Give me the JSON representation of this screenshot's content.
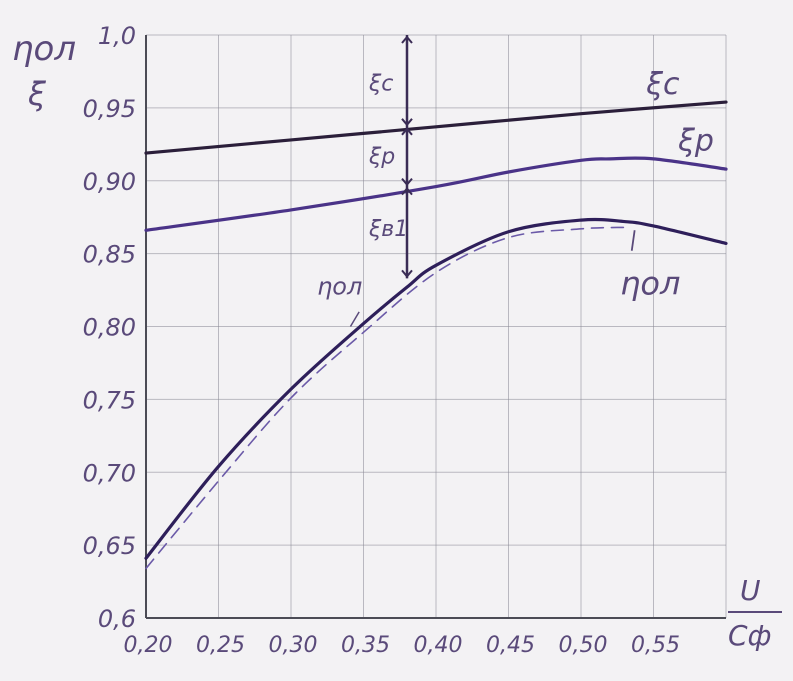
{
  "chart_data": {
    "type": "line",
    "title": "",
    "ylabel_top": "ηол",
    "ylabel_bottom": "ξ",
    "xlabel_num": "U",
    "xlabel_den": "Cф",
    "xlim": [
      0.2,
      0.6
    ],
    "ylim": [
      0.6,
      1.0
    ],
    "grid": true,
    "xticks": [
      0.2,
      0.25,
      0.3,
      0.35,
      0.4,
      0.45,
      0.5,
      0.55
    ],
    "xtick_labels": [
      "0,20",
      "0,25",
      "0,30",
      "0,35",
      "0,40",
      "0,45",
      "0,50",
      "0,55"
    ],
    "yticks": [
      0.6,
      0.65,
      0.7,
      0.75,
      0.8,
      0.85,
      0.9,
      0.95,
      1.0
    ],
    "ytick_labels": [
      "0,6",
      "0,65",
      "0,70",
      "0,75",
      "0,80",
      "0,85",
      "0,90",
      "0,95",
      "1,0"
    ],
    "series": [
      {
        "name": "ξс",
        "style": "solid",
        "color": "#2b1f3a",
        "x": [
          0.2,
          0.3,
          0.4,
          0.5,
          0.6
        ],
        "y": [
          0.919,
          0.928,
          0.937,
          0.946,
          0.954
        ]
      },
      {
        "name": "ξр",
        "style": "solid",
        "color": "#4a3388",
        "x": [
          0.2,
          0.3,
          0.4,
          0.45,
          0.5,
          0.52,
          0.55,
          0.6
        ],
        "y": [
          0.866,
          0.88,
          0.896,
          0.906,
          0.914,
          0.915,
          0.915,
          0.908
        ]
      },
      {
        "name": "ηол",
        "style": "solid",
        "color": "#2e1f5a",
        "x": [
          0.2,
          0.25,
          0.3,
          0.35,
          0.38,
          0.4,
          0.45,
          0.5,
          0.53,
          0.55,
          0.6
        ],
        "y": [
          0.641,
          0.704,
          0.757,
          0.802,
          0.827,
          0.842,
          0.865,
          0.873,
          0.872,
          0.869,
          0.857
        ]
      },
      {
        "name": "ηол (dashed)",
        "style": "dashed",
        "color": "#6b5aa8",
        "x": [
          0.2,
          0.25,
          0.3,
          0.35,
          0.4,
          0.45,
          0.5,
          0.53
        ],
        "y": [
          0.634,
          0.694,
          0.751,
          0.796,
          0.837,
          0.861,
          0.867,
          0.868
        ]
      }
    ],
    "annotations": [
      {
        "text": "ξс",
        "near_series": "ξс"
      },
      {
        "text": "ξр",
        "near_series": "ξр"
      },
      {
        "text": "ηол",
        "near_series": "ηол (upper-left label)"
      },
      {
        "text": "ηол",
        "near_series": "ηол (lower-right label)"
      },
      {
        "text": "ξс",
        "note": "arrow segment between 1.0 and ξс at U/Cф≈0.38"
      },
      {
        "text": "ξр",
        "note": "arrow segment between ξс and ξр"
      },
      {
        "text": "ξв1",
        "note": "arrow segment between ξр and ηол"
      }
    ],
    "marker_x": 0.38
  }
}
